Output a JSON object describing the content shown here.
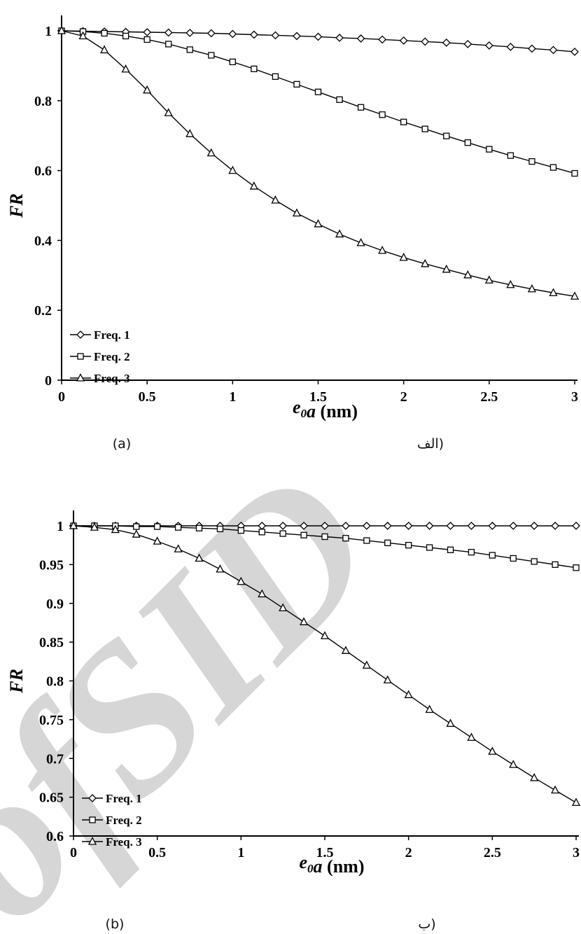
{
  "watermark": "ofSID",
  "chart_data": [
    {
      "type": "line",
      "title": "",
      "xlabel": "e0a (nm)",
      "xlabel_parts": [
        "e",
        "0",
        "a (nm)"
      ],
      "ylabel": "FR",
      "xlim": [
        0,
        3
      ],
      "ylim": [
        0,
        1
      ],
      "x_ticks": [
        0,
        0.5,
        1,
        1.5,
        2,
        2.5,
        3
      ],
      "x_tick_labels": [
        "0",
        "0.5",
        "1",
        "1.5",
        "2",
        "2.5",
        "3"
      ],
      "y_ticks": [
        0,
        0.2,
        0.4,
        0.6,
        0.8,
        1
      ],
      "y_tick_labels": [
        "0",
        "0.2",
        "0.4",
        "0.6",
        "0.8",
        "1"
      ],
      "grid": false,
      "legend_position": "bottom-left",
      "caption_left": "(a)",
      "caption_right": "(الف",
      "x": [
        0,
        0.125,
        0.25,
        0.375,
        0.5,
        0.625,
        0.75,
        0.875,
        1,
        1.125,
        1.25,
        1.375,
        1.5,
        1.625,
        1.75,
        1.875,
        2,
        2.125,
        2.25,
        2.375,
        2.5,
        2.625,
        2.75,
        2.875,
        3
      ],
      "series": [
        {
          "name": "Freq. 1",
          "marker": "diamond",
          "values": [
            1,
            0.999,
            0.998,
            0.997,
            0.996,
            0.995,
            0.994,
            0.993,
            0.991,
            0.989,
            0.987,
            0.985,
            0.983,
            0.98,
            0.978,
            0.975,
            0.972,
            0.969,
            0.966,
            0.962,
            0.958,
            0.954,
            0.949,
            0.945,
            0.94
          ]
        },
        {
          "name": "Freq. 2",
          "marker": "square",
          "values": [
            1,
            0.998,
            0.993,
            0.985,
            0.975,
            0.962,
            0.946,
            0.93,
            0.911,
            0.891,
            0.869,
            0.847,
            0.825,
            0.803,
            0.781,
            0.76,
            0.739,
            0.719,
            0.699,
            0.68,
            0.661,
            0.643,
            0.626,
            0.609,
            0.592
          ]
        },
        {
          "name": "Freq. 3",
          "marker": "triangle",
          "values": [
            1,
            0.985,
            0.945,
            0.89,
            0.83,
            0.765,
            0.705,
            0.65,
            0.6,
            0.555,
            0.515,
            0.478,
            0.447,
            0.418,
            0.393,
            0.371,
            0.351,
            0.333,
            0.317,
            0.301,
            0.286,
            0.273,
            0.261,
            0.25,
            0.24
          ]
        }
      ]
    },
    {
      "type": "line",
      "title": "",
      "xlabel": "e0a (nm)",
      "xlabel_parts": [
        "e",
        "0",
        "a (nm)"
      ],
      "ylabel": "FR",
      "xlim": [
        0,
        3
      ],
      "ylim": [
        0.6,
        1
      ],
      "x_ticks": [
        0,
        0.5,
        1,
        1.5,
        2,
        2.5,
        3
      ],
      "x_tick_labels": [
        "0",
        "0.5",
        "1",
        "1.5",
        "2",
        "2.5",
        "3"
      ],
      "y_ticks": [
        0.6,
        0.65,
        0.7,
        0.75,
        0.8,
        0.85,
        0.9,
        0.95,
        1
      ],
      "y_tick_labels": [
        "0.6",
        "0.65",
        "0.7",
        "0.75",
        "0.8",
        "0.85",
        "0.9",
        "0.95",
        "1"
      ],
      "grid": false,
      "legend_position": "bottom-left",
      "caption_left": "(b)",
      "caption_right": "(ب",
      "x": [
        0,
        0.125,
        0.25,
        0.375,
        0.5,
        0.625,
        0.75,
        0.875,
        1,
        1.125,
        1.25,
        1.375,
        1.5,
        1.625,
        1.75,
        1.875,
        2,
        2.125,
        2.25,
        2.375,
        2.5,
        2.625,
        2.75,
        2.875,
        3
      ],
      "series": [
        {
          "name": "Freq. 1",
          "marker": "diamond",
          "values": [
            1,
            1,
            1,
            1,
            1,
            1,
            1,
            1,
            1,
            1,
            1,
            1,
            1,
            1,
            1,
            1,
            1,
            1,
            1,
            1,
            1,
            1,
            1,
            1,
            1
          ]
        },
        {
          "name": "Freq. 2",
          "marker": "square",
          "values": [
            1,
            1,
            1,
            0.999,
            0.999,
            0.998,
            0.997,
            0.996,
            0.994,
            0.992,
            0.99,
            0.988,
            0.986,
            0.984,
            0.981,
            0.978,
            0.975,
            0.972,
            0.969,
            0.966,
            0.962,
            0.958,
            0.954,
            0.95,
            0.946
          ]
        },
        {
          "name": "Freq. 3",
          "marker": "triangle",
          "values": [
            1,
            0.998,
            0.995,
            0.989,
            0.98,
            0.97,
            0.958,
            0.944,
            0.928,
            0.912,
            0.894,
            0.876,
            0.858,
            0.839,
            0.82,
            0.801,
            0.782,
            0.763,
            0.745,
            0.727,
            0.709,
            0.692,
            0.675,
            0.659,
            0.643
          ]
        }
      ]
    }
  ]
}
